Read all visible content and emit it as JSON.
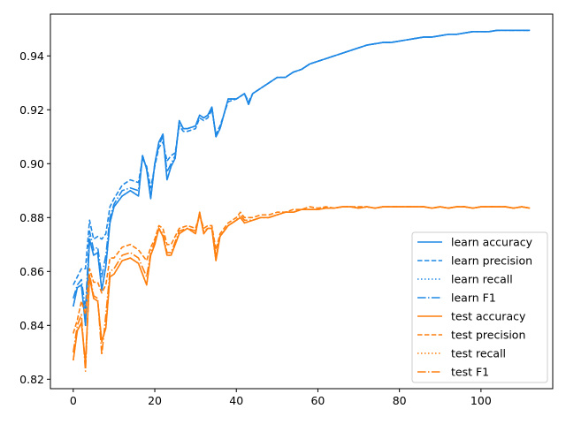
{
  "chart_data": {
    "type": "line",
    "title": "",
    "xlabel": "",
    "ylabel": "",
    "xlim": [
      -5.6,
      117.6
    ],
    "ylim": [
      0.8165,
      0.9555
    ],
    "xticks": [
      0,
      20,
      40,
      60,
      80,
      100
    ],
    "yticks": [
      0.82,
      0.84,
      0.86,
      0.88,
      0.9,
      0.92,
      0.94
    ],
    "ytick_labels": [
      "0.82",
      "0.84",
      "0.86",
      "0.88",
      "0.90",
      "0.92",
      "0.94"
    ],
    "grid": false,
    "legend_position": "lower-right",
    "colors": {
      "learn": "#1f88e5",
      "test": "#ff7f0e"
    },
    "series": [
      {
        "name": "learn accuracy",
        "style": "solid",
        "color": "#1f88e5",
        "x": [
          0,
          1,
          2,
          3,
          4,
          5,
          6,
          7,
          8,
          9,
          10,
          12,
          14,
          16,
          17,
          18,
          19,
          20,
          21,
          22,
          23,
          24,
          25,
          26,
          27,
          28,
          30,
          31,
          32,
          33,
          34,
          35,
          36,
          38,
          40,
          42,
          43,
          44,
          46,
          48,
          50,
          52,
          54,
          56,
          58,
          60,
          62,
          64,
          66,
          68,
          70,
          72,
          74,
          76,
          78,
          80,
          82,
          84,
          86,
          88,
          90,
          92,
          94,
          96,
          98,
          100,
          102,
          104,
          106,
          108,
          110,
          112
        ],
        "y": [
          0.847,
          0.854,
          0.855,
          0.84,
          0.872,
          0.866,
          0.867,
          0.853,
          0.862,
          0.878,
          0.884,
          0.888,
          0.89,
          0.888,
          0.903,
          0.898,
          0.887,
          0.9,
          0.908,
          0.911,
          0.894,
          0.899,
          0.902,
          0.916,
          0.913,
          0.913,
          0.914,
          0.918,
          0.917,
          0.918,
          0.921,
          0.91,
          0.913,
          0.924,
          0.924,
          0.926,
          0.922,
          0.926,
          0.928,
          0.93,
          0.932,
          0.932,
          0.934,
          0.935,
          0.937,
          0.938,
          0.939,
          0.94,
          0.941,
          0.942,
          0.943,
          0.944,
          0.9445,
          0.945,
          0.945,
          0.9455,
          0.946,
          0.9465,
          0.947,
          0.947,
          0.9475,
          0.948,
          0.948,
          0.9485,
          0.949,
          0.949,
          0.949,
          0.9495,
          0.9495,
          0.9495,
          0.9495,
          0.9495
        ]
      },
      {
        "name": "learn precision",
        "style": "dashed",
        "color": "#1f88e5",
        "x": [
          0,
          1,
          2,
          3,
          4,
          5,
          6,
          7,
          8,
          9,
          10,
          12,
          14,
          16,
          17,
          18,
          19,
          20,
          21,
          22,
          23,
          24,
          25,
          26,
          27,
          28,
          30,
          31,
          32,
          33,
          34,
          35,
          36,
          38,
          40,
          42,
          43,
          44,
          46,
          48,
          50,
          52,
          54,
          56,
          58,
          60,
          62,
          64,
          66,
          68,
          70,
          72,
          74,
          76,
          78,
          80,
          82,
          84,
          86,
          88,
          90,
          92,
          94,
          96,
          98,
          100,
          102,
          104,
          106,
          108,
          110,
          112
        ],
        "y": [
          0.855,
          0.858,
          0.861,
          0.861,
          0.879,
          0.872,
          0.873,
          0.872,
          0.874,
          0.884,
          0.887,
          0.892,
          0.894,
          0.893,
          0.902,
          0.899,
          0.891,
          0.899,
          0.906,
          0.908,
          0.901,
          0.903,
          0.904,
          0.914,
          0.912,
          0.912,
          0.913,
          0.917,
          0.916,
          0.917,
          0.92,
          0.911,
          0.914,
          0.923,
          0.924,
          0.926,
          0.923,
          0.926,
          0.928,
          0.93,
          0.932,
          0.932,
          0.934,
          0.935,
          0.937,
          0.938,
          0.939,
          0.94,
          0.941,
          0.942,
          0.943,
          0.944,
          0.9445,
          0.945,
          0.945,
          0.9455,
          0.946,
          0.9465,
          0.947,
          0.947,
          0.9475,
          0.948,
          0.948,
          0.9485,
          0.949,
          0.949,
          0.949,
          0.9495,
          0.9495,
          0.9495,
          0.9495,
          0.9495
        ]
      },
      {
        "name": "learn recall",
        "style": "dotted",
        "color": "#1f88e5",
        "x": [
          0,
          1,
          2,
          3,
          4,
          5,
          6,
          7,
          8,
          9,
          10,
          12,
          14,
          16,
          17,
          18,
          19,
          20,
          21,
          22,
          23,
          24,
          25,
          26,
          27,
          28,
          30,
          31,
          32,
          33,
          34,
          35,
          36,
          38,
          40,
          42,
          43,
          44,
          46,
          48,
          50,
          52,
          54,
          56,
          58,
          60,
          62,
          64,
          66,
          68,
          70,
          72,
          74,
          76,
          78,
          80,
          82,
          84,
          86,
          88,
          90,
          92,
          94,
          96,
          98,
          100,
          102,
          104,
          106,
          108,
          110,
          112
        ],
        "y": [
          0.847,
          0.854,
          0.855,
          0.84,
          0.872,
          0.866,
          0.867,
          0.853,
          0.862,
          0.878,
          0.884,
          0.888,
          0.89,
          0.888,
          0.903,
          0.898,
          0.887,
          0.9,
          0.908,
          0.911,
          0.894,
          0.899,
          0.902,
          0.916,
          0.913,
          0.913,
          0.914,
          0.918,
          0.917,
          0.918,
          0.921,
          0.91,
          0.913,
          0.924,
          0.924,
          0.926,
          0.922,
          0.926,
          0.928,
          0.93,
          0.932,
          0.932,
          0.934,
          0.935,
          0.937,
          0.938,
          0.939,
          0.94,
          0.941,
          0.942,
          0.943,
          0.944,
          0.9445,
          0.945,
          0.945,
          0.9455,
          0.946,
          0.9465,
          0.947,
          0.947,
          0.9475,
          0.948,
          0.948,
          0.9485,
          0.949,
          0.949,
          0.949,
          0.9495,
          0.9495,
          0.9495,
          0.9495,
          0.9495
        ]
      },
      {
        "name": "learn F1",
        "style": "dashdot",
        "color": "#1f88e5",
        "x": [
          0,
          1,
          2,
          3,
          4,
          5,
          6,
          7,
          8,
          9,
          10,
          12,
          14,
          16,
          17,
          18,
          19,
          20,
          21,
          22,
          23,
          24,
          25,
          26,
          27,
          28,
          30,
          31,
          32,
          33,
          34,
          35,
          36,
          38,
          40,
          42,
          43,
          44,
          46,
          48,
          50,
          52,
          54,
          56,
          58,
          60,
          62,
          64,
          66,
          68,
          70,
          72,
          74,
          76,
          78,
          80,
          82,
          84,
          86,
          88,
          90,
          92,
          94,
          96,
          98,
          100,
          102,
          104,
          106,
          108,
          110,
          112
        ],
        "y": [
          0.85,
          0.855,
          0.857,
          0.846,
          0.875,
          0.868,
          0.869,
          0.858,
          0.866,
          0.88,
          0.885,
          0.89,
          0.891,
          0.89,
          0.903,
          0.898,
          0.888,
          0.9,
          0.907,
          0.91,
          0.897,
          0.9,
          0.903,
          0.915,
          0.913,
          0.913,
          0.914,
          0.918,
          0.917,
          0.918,
          0.921,
          0.91,
          0.913,
          0.924,
          0.924,
          0.926,
          0.922,
          0.926,
          0.928,
          0.93,
          0.932,
          0.932,
          0.934,
          0.935,
          0.937,
          0.938,
          0.939,
          0.94,
          0.941,
          0.942,
          0.943,
          0.944,
          0.9445,
          0.945,
          0.945,
          0.9455,
          0.946,
          0.9465,
          0.947,
          0.947,
          0.9475,
          0.948,
          0.948,
          0.9485,
          0.949,
          0.949,
          0.949,
          0.9495,
          0.9495,
          0.9495,
          0.9495,
          0.9495
        ]
      },
      {
        "name": "test accuracy",
        "style": "solid",
        "color": "#ff7f0e",
        "x": [
          0,
          1,
          2,
          3,
          4,
          5,
          6,
          7,
          8,
          9,
          10,
          12,
          14,
          16,
          18,
          19,
          20,
          21,
          22,
          23,
          24,
          25,
          26,
          28,
          30,
          31,
          32,
          33,
          34,
          35,
          36,
          38,
          40,
          41,
          42,
          44,
          46,
          48,
          50,
          52,
          54,
          56,
          58,
          60,
          62,
          64,
          66,
          68,
          70,
          72,
          74,
          76,
          78,
          80,
          82,
          84,
          86,
          88,
          90,
          92,
          94,
          96,
          98,
          100,
          102,
          104,
          106,
          108,
          110,
          112
        ],
        "y": [
          0.827,
          0.838,
          0.841,
          0.826,
          0.858,
          0.85,
          0.849,
          0.834,
          0.839,
          0.858,
          0.859,
          0.864,
          0.865,
          0.863,
          0.855,
          0.866,
          0.87,
          0.876,
          0.873,
          0.866,
          0.866,
          0.87,
          0.874,
          0.876,
          0.874,
          0.882,
          0.874,
          0.876,
          0.876,
          0.864,
          0.873,
          0.877,
          0.879,
          0.88,
          0.878,
          0.879,
          0.88,
          0.88,
          0.881,
          0.882,
          0.882,
          0.883,
          0.883,
          0.883,
          0.8835,
          0.8835,
          0.884,
          0.884,
          0.8835,
          0.884,
          0.8835,
          0.884,
          0.884,
          0.884,
          0.884,
          0.884,
          0.884,
          0.8835,
          0.884,
          0.8835,
          0.884,
          0.884,
          0.8835,
          0.884,
          0.884,
          0.884,
          0.884,
          0.8835,
          0.884,
          0.8835
        ]
      },
      {
        "name": "test precision",
        "style": "dashed",
        "color": "#ff7f0e",
        "x": [
          0,
          1,
          2,
          3,
          4,
          5,
          6,
          7,
          8,
          9,
          10,
          12,
          14,
          16,
          18,
          19,
          20,
          21,
          22,
          23,
          24,
          25,
          26,
          28,
          30,
          31,
          32,
          33,
          34,
          35,
          36,
          38,
          40,
          41,
          42,
          44,
          46,
          48,
          50,
          52,
          54,
          56,
          58,
          60,
          62,
          64,
          66,
          68,
          70,
          72,
          74,
          76,
          78,
          80,
          82,
          84,
          86,
          88,
          90,
          92,
          94,
          96,
          98,
          100,
          102,
          104,
          106,
          108,
          110,
          112
        ],
        "y": [
          0.837,
          0.842,
          0.849,
          0.844,
          0.861,
          0.856,
          0.856,
          0.852,
          0.855,
          0.865,
          0.865,
          0.869,
          0.87,
          0.868,
          0.864,
          0.869,
          0.872,
          0.877,
          0.876,
          0.87,
          0.87,
          0.873,
          0.876,
          0.877,
          0.876,
          0.881,
          0.876,
          0.877,
          0.877,
          0.868,
          0.874,
          0.878,
          0.88,
          0.882,
          0.88,
          0.88,
          0.881,
          0.881,
          0.882,
          0.882,
          0.883,
          0.883,
          0.884,
          0.8835,
          0.884,
          0.8835,
          0.884,
          0.884,
          0.884,
          0.884,
          0.8835,
          0.884,
          0.884,
          0.884,
          0.884,
          0.884,
          0.884,
          0.8835,
          0.884,
          0.8835,
          0.884,
          0.884,
          0.8835,
          0.884,
          0.884,
          0.884,
          0.884,
          0.8835,
          0.884,
          0.8835
        ]
      },
      {
        "name": "test recall",
        "style": "dotted",
        "color": "#ff7f0e",
        "x": [
          0,
          1,
          2,
          3,
          4,
          5,
          6,
          7,
          8,
          9,
          10,
          12,
          14,
          16,
          18,
          19,
          20,
          21,
          22,
          23,
          24,
          25,
          26,
          28,
          30,
          31,
          32,
          33,
          34,
          35,
          36,
          38,
          40,
          41,
          42,
          44,
          46,
          48,
          50,
          52,
          54,
          56,
          58,
          60,
          62,
          64,
          66,
          68,
          70,
          72,
          74,
          76,
          78,
          80,
          82,
          84,
          86,
          88,
          90,
          92,
          94,
          96,
          98,
          100,
          102,
          104,
          106,
          108,
          110,
          112
        ],
        "y": [
          0.827,
          0.838,
          0.841,
          0.826,
          0.858,
          0.85,
          0.849,
          0.834,
          0.839,
          0.858,
          0.859,
          0.864,
          0.865,
          0.863,
          0.855,
          0.866,
          0.87,
          0.876,
          0.873,
          0.866,
          0.866,
          0.87,
          0.874,
          0.876,
          0.874,
          0.882,
          0.874,
          0.876,
          0.876,
          0.864,
          0.873,
          0.877,
          0.879,
          0.88,
          0.878,
          0.879,
          0.88,
          0.88,
          0.881,
          0.882,
          0.882,
          0.883,
          0.883,
          0.883,
          0.8835,
          0.8835,
          0.884,
          0.884,
          0.8835,
          0.884,
          0.8835,
          0.884,
          0.884,
          0.884,
          0.884,
          0.884,
          0.884,
          0.8835,
          0.884,
          0.8835,
          0.884,
          0.884,
          0.8835,
          0.884,
          0.884,
          0.884,
          0.884,
          0.8835,
          0.884,
          0.8835
        ]
      },
      {
        "name": "test F1",
        "style": "dashdot",
        "color": "#ff7f0e",
        "x": [
          0,
          1,
          2,
          3,
          4,
          5,
          6,
          7,
          8,
          9,
          10,
          12,
          14,
          16,
          18,
          19,
          20,
          21,
          22,
          23,
          24,
          25,
          26,
          28,
          30,
          31,
          32,
          33,
          34,
          35,
          36,
          38,
          40,
          41,
          42,
          44,
          46,
          48,
          50,
          52,
          54,
          56,
          58,
          60,
          62,
          64,
          66,
          68,
          70,
          72,
          74,
          76,
          78,
          80,
          82,
          84,
          86,
          88,
          90,
          92,
          94,
          96,
          98,
          100,
          102,
          104,
          106,
          108,
          110,
          112
        ],
        "y": [
          0.83,
          0.84,
          0.844,
          0.823,
          0.859,
          0.851,
          0.85,
          0.829,
          0.844,
          0.86,
          0.861,
          0.866,
          0.867,
          0.865,
          0.858,
          0.867,
          0.871,
          0.876,
          0.874,
          0.867,
          0.867,
          0.871,
          0.875,
          0.876,
          0.875,
          0.881,
          0.875,
          0.876,
          0.876,
          0.866,
          0.873,
          0.877,
          0.879,
          0.881,
          0.879,
          0.879,
          0.88,
          0.88,
          0.881,
          0.882,
          0.882,
          0.883,
          0.883,
          0.883,
          0.8835,
          0.8835,
          0.884,
          0.884,
          0.8835,
          0.884,
          0.8835,
          0.884,
          0.884,
          0.884,
          0.884,
          0.884,
          0.884,
          0.8835,
          0.884,
          0.8835,
          0.884,
          0.884,
          0.8835,
          0.884,
          0.884,
          0.884,
          0.884,
          0.8835,
          0.884,
          0.8835
        ]
      }
    ]
  }
}
